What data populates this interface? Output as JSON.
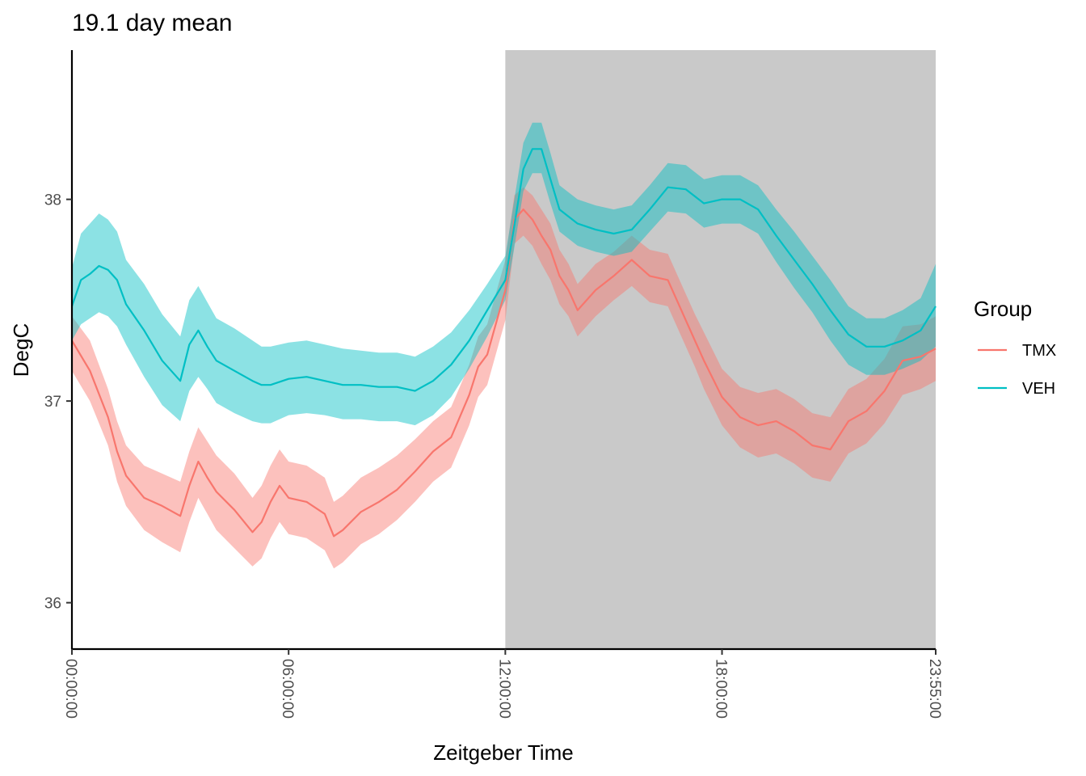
{
  "chart_data": {
    "type": "line",
    "title": "19.1 day mean",
    "xlabel": "Zeitgeber Time",
    "ylabel": "DegC",
    "x_unit": "hours",
    "xlim": [
      0,
      23.9167
    ],
    "ylim": [
      35.77,
      38.74
    ],
    "x_ticks": [
      {
        "value": 0,
        "label": "00:00:00"
      },
      {
        "value": 6,
        "label": "06:00:00"
      },
      {
        "value": 12,
        "label": "12:00:00"
      },
      {
        "value": 18,
        "label": "18:00:00"
      },
      {
        "value": 23.9167,
        "label": "23:55:00"
      }
    ],
    "y_ticks": [
      {
        "value": 36,
        "label": "36"
      },
      {
        "value": 37,
        "label": "37"
      },
      {
        "value": 38,
        "label": "38"
      }
    ],
    "shaded_region": {
      "x_start": 12,
      "x_end": 23.9167,
      "color": "#c9c9c9"
    },
    "grid": false,
    "legend": {
      "title": "Group",
      "position": "right"
    },
    "series": [
      {
        "name": "TMX",
        "color": "#f8766d",
        "band_color": "#f8766d",
        "x": [
          0,
          0.5,
          1,
          1.25,
          1.5,
          2,
          2.5,
          3,
          3.25,
          3.5,
          3.75,
          4,
          4.5,
          5,
          5.25,
          5.5,
          5.75,
          6,
          6.5,
          7,
          7.25,
          7.5,
          8,
          8.5,
          9,
          9.5,
          10,
          10.5,
          11,
          11.25,
          11.5,
          12,
          12.25,
          12.5,
          12.75,
          13,
          13.25,
          13.5,
          13.75,
          14,
          14.5,
          15,
          15.5,
          16,
          16.5,
          17,
          17.25,
          17.5,
          18,
          18.5,
          19,
          19.5,
          20,
          20.5,
          21,
          21.5,
          22,
          22.5,
          23,
          23.5,
          23.9167
        ],
        "y": [
          37.3,
          37.15,
          36.92,
          36.75,
          36.63,
          36.52,
          36.48,
          36.43,
          36.58,
          36.7,
          36.62,
          36.55,
          36.46,
          36.35,
          36.4,
          36.5,
          36.58,
          36.52,
          36.5,
          36.44,
          36.33,
          36.36,
          36.45,
          36.5,
          36.56,
          36.65,
          36.75,
          36.82,
          37.03,
          37.17,
          37.23,
          37.55,
          37.9,
          37.95,
          37.9,
          37.82,
          37.75,
          37.62,
          37.55,
          37.45,
          37.55,
          37.62,
          37.7,
          37.62,
          37.6,
          37.4,
          37.3,
          37.2,
          37.02,
          36.92,
          36.88,
          36.9,
          36.85,
          36.78,
          36.76,
          36.9,
          36.95,
          37.05,
          37.2,
          37.22,
          37.26
        ],
        "lower": [
          37.15,
          37.0,
          36.78,
          36.6,
          36.48,
          36.36,
          36.3,
          36.25,
          36.4,
          36.52,
          36.44,
          36.36,
          36.27,
          36.18,
          36.22,
          36.32,
          36.4,
          36.34,
          36.32,
          36.26,
          36.17,
          36.2,
          36.29,
          36.34,
          36.41,
          36.5,
          36.6,
          36.67,
          36.88,
          37.02,
          37.08,
          37.4,
          37.78,
          37.82,
          37.77,
          37.68,
          37.6,
          37.48,
          37.42,
          37.32,
          37.42,
          37.5,
          37.57,
          37.49,
          37.47,
          37.27,
          37.17,
          37.06,
          36.88,
          36.77,
          36.72,
          36.74,
          36.69,
          36.62,
          36.6,
          36.74,
          36.79,
          36.89,
          37.03,
          37.06,
          37.1
        ],
        "upper": [
          37.42,
          37.3,
          37.06,
          36.9,
          36.78,
          36.68,
          36.64,
          36.6,
          36.75,
          36.87,
          36.8,
          36.73,
          36.64,
          36.52,
          36.58,
          36.68,
          36.76,
          36.7,
          36.68,
          36.62,
          36.5,
          36.53,
          36.62,
          36.67,
          36.73,
          36.81,
          36.9,
          36.97,
          37.18,
          37.32,
          37.38,
          37.7,
          38.02,
          38.06,
          38.02,
          37.95,
          37.88,
          37.75,
          37.68,
          37.58,
          37.68,
          37.74,
          37.82,
          37.75,
          37.73,
          37.53,
          37.43,
          37.34,
          37.16,
          37.07,
          37.04,
          37.06,
          37.01,
          36.94,
          36.92,
          37.06,
          37.11,
          37.21,
          37.37,
          37.38,
          37.42
        ]
      },
      {
        "name": "VEH",
        "color": "#00bfc4",
        "band_color": "#00bfc4",
        "x": [
          0,
          0.25,
          0.5,
          0.75,
          1,
          1.25,
          1.5,
          2,
          2.5,
          3,
          3.25,
          3.5,
          3.75,
          4,
          4.5,
          5,
          5.25,
          5.5,
          6,
          6.5,
          7,
          7.5,
          8,
          8.5,
          9,
          9.5,
          10,
          10.5,
          11,
          11.5,
          12,
          12.25,
          12.5,
          12.75,
          13,
          13.25,
          13.5,
          14,
          14.5,
          15,
          15.5,
          16,
          16.5,
          17,
          17.5,
          18,
          18.5,
          19,
          19.5,
          20,
          20.5,
          21,
          21.5,
          22,
          22.5,
          23,
          23.5,
          23.9167
        ],
        "y": [
          37.47,
          37.6,
          37.63,
          37.67,
          37.65,
          37.6,
          37.48,
          37.35,
          37.2,
          37.1,
          37.28,
          37.35,
          37.27,
          37.2,
          37.15,
          37.1,
          37.08,
          37.08,
          37.11,
          37.12,
          37.1,
          37.08,
          37.08,
          37.07,
          37.07,
          37.05,
          37.1,
          37.18,
          37.3,
          37.45,
          37.6,
          37.87,
          38.15,
          38.25,
          38.25,
          38.1,
          37.95,
          37.88,
          37.85,
          37.83,
          37.85,
          37.95,
          38.06,
          38.05,
          37.98,
          38.0,
          38.0,
          37.95,
          37.82,
          37.7,
          37.58,
          37.45,
          37.33,
          37.27,
          37.27,
          37.3,
          37.35,
          37.47
        ],
        "lower": [
          37.3,
          37.38,
          37.41,
          37.44,
          37.42,
          37.37,
          37.28,
          37.12,
          36.98,
          36.9,
          37.05,
          37.12,
          37.06,
          36.99,
          36.94,
          36.9,
          36.89,
          36.89,
          36.93,
          36.94,
          36.93,
          36.91,
          36.91,
          36.9,
          36.9,
          36.88,
          36.93,
          37.02,
          37.16,
          37.32,
          37.5,
          37.76,
          38.04,
          38.13,
          38.13,
          37.98,
          37.84,
          37.77,
          37.74,
          37.72,
          37.74,
          37.84,
          37.94,
          37.93,
          37.86,
          37.88,
          37.88,
          37.83,
          37.69,
          37.56,
          37.44,
          37.3,
          37.18,
          37.13,
          37.13,
          37.16,
          37.2,
          37.27
        ],
        "upper": [
          37.66,
          37.83,
          37.88,
          37.93,
          37.9,
          37.84,
          37.7,
          37.58,
          37.43,
          37.32,
          37.5,
          37.57,
          37.49,
          37.41,
          37.36,
          37.3,
          37.27,
          37.27,
          37.29,
          37.3,
          37.28,
          37.26,
          37.25,
          37.24,
          37.24,
          37.22,
          37.27,
          37.34,
          37.45,
          37.58,
          37.72,
          38.0,
          38.28,
          38.38,
          38.38,
          38.23,
          38.07,
          38.0,
          37.97,
          37.95,
          37.97,
          38.07,
          38.18,
          38.17,
          38.1,
          38.12,
          38.12,
          38.07,
          37.95,
          37.84,
          37.72,
          37.6,
          37.47,
          37.41,
          37.41,
          37.45,
          37.51,
          37.68
        ]
      }
    ]
  }
}
